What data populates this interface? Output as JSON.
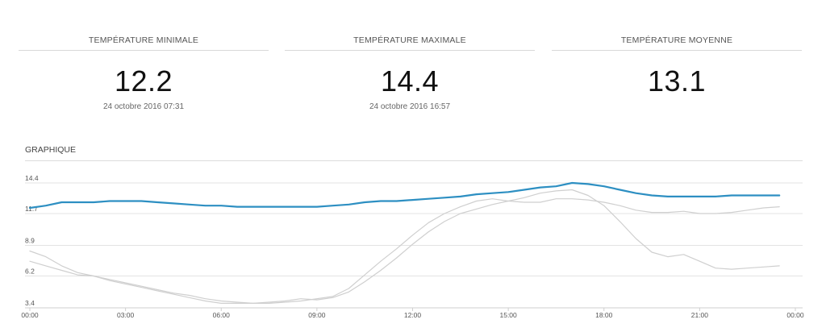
{
  "stats": [
    {
      "label": "TEMPÉRATURE MINIMALE",
      "value": "12.2",
      "date": "24 octobre 2016 07:31"
    },
    {
      "label": "TEMPÉRATURE MAXIMALE",
      "value": "14.4",
      "date": "24 octobre 2016 16:57"
    },
    {
      "label": "TEMPÉRATURE MOYENNE",
      "value": "13.1",
      "date": ""
    }
  ],
  "section": {
    "title": "GRAPHIQUE"
  },
  "colors": {
    "main": "#2d8fc2",
    "secondary": "#cfcfcf",
    "grid": "#e3e3e3"
  },
  "chart_data": {
    "type": "line",
    "ylim": [
      3.4,
      14.4
    ],
    "xlim": [
      0,
      24
    ],
    "yticks": [
      "14.4",
      "11.7",
      "8.9",
      "6.2",
      "3.4"
    ],
    "ytick_values": [
      14.4,
      11.7,
      8.9,
      6.2,
      3.4
    ],
    "xticks": [
      "00:00",
      "03:00",
      "06:00",
      "09:00",
      "12:00",
      "15:00",
      "18:00",
      "21:00",
      "00:00"
    ],
    "xtick_values": [
      0,
      3,
      6,
      9,
      12,
      15,
      18,
      21,
      24
    ],
    "grid": true,
    "series": [
      {
        "style": "main",
        "x": [
          0,
          0.5,
          1,
          1.5,
          2,
          2.5,
          3,
          3.5,
          4,
          4.5,
          5,
          5.5,
          6,
          6.5,
          7,
          7.5,
          8,
          8.5,
          9,
          9.5,
          10,
          10.5,
          11,
          11.5,
          12,
          12.5,
          13,
          13.5,
          14,
          14.5,
          15,
          15.5,
          16,
          16.5,
          17,
          17.5,
          18,
          18.5,
          19,
          19.5,
          20,
          20.5,
          21,
          21.5,
          22,
          22.5,
          23,
          23.5
        ],
        "y": [
          12.2,
          12.4,
          12.7,
          12.7,
          12.7,
          12.8,
          12.8,
          12.8,
          12.7,
          12.6,
          12.5,
          12.4,
          12.4,
          12.3,
          12.3,
          12.3,
          12.3,
          12.3,
          12.3,
          12.4,
          12.5,
          12.7,
          12.8,
          12.8,
          12.9,
          13.0,
          13.1,
          13.2,
          13.4,
          13.5,
          13.6,
          13.8,
          14.0,
          14.1,
          14.4,
          14.3,
          14.1,
          13.8,
          13.5,
          13.3,
          13.2,
          13.2,
          13.2,
          13.2,
          13.3,
          13.3,
          13.3,
          13.3
        ]
      },
      {
        "style": "secondary",
        "x": [
          0,
          0.5,
          1,
          1.5,
          2,
          2.5,
          3,
          3.5,
          4,
          4.5,
          5,
          5.5,
          6,
          6.5,
          7,
          7.5,
          8,
          8.5,
          9,
          9.5,
          10,
          10.5,
          11,
          11.5,
          12,
          12.5,
          13,
          13.5,
          14,
          14.5,
          15,
          15.5,
          16,
          16.5,
          17,
          17.5,
          18,
          18.5,
          19,
          19.5,
          20,
          20.5,
          21,
          21.5,
          22,
          22.5,
          23,
          23.5
        ],
        "y": [
          7.5,
          7.1,
          6.7,
          6.3,
          6.2,
          5.8,
          5.5,
          5.2,
          4.9,
          4.6,
          4.3,
          4.0,
          3.8,
          3.8,
          3.8,
          3.9,
          4.0,
          4.2,
          4.1,
          4.3,
          4.8,
          5.7,
          6.7,
          7.8,
          9.0,
          10.1,
          11.0,
          11.7,
          12.1,
          12.5,
          12.8,
          13.1,
          13.5,
          13.7,
          13.8,
          13.3,
          12.4,
          11.0,
          9.5,
          8.3,
          7.9,
          8.1,
          7.5,
          6.9,
          6.8,
          6.9,
          7.0,
          7.1
        ]
      },
      {
        "style": "secondary",
        "x": [
          0,
          0.5,
          1,
          1.5,
          2,
          2.5,
          3,
          3.5,
          4,
          4.5,
          5,
          5.5,
          6,
          6.5,
          7,
          7.5,
          8,
          8.5,
          9,
          9.5,
          10,
          10.5,
          11,
          11.5,
          12,
          12.5,
          13,
          13.5,
          14,
          14.5,
          15,
          15.5,
          16,
          16.5,
          17,
          17.5,
          18,
          18.5,
          19,
          19.5,
          20,
          20.5,
          21,
          21.5,
          22,
          22.5,
          23,
          23.5
        ],
        "y": [
          8.4,
          7.9,
          7.1,
          6.5,
          6.2,
          5.9,
          5.6,
          5.3,
          5.0,
          4.7,
          4.5,
          4.2,
          4.0,
          3.9,
          3.8,
          3.8,
          3.9,
          4.0,
          4.2,
          4.4,
          5.1,
          6.3,
          7.5,
          8.6,
          9.8,
          10.9,
          11.7,
          12.3,
          12.8,
          13.0,
          12.8,
          12.7,
          12.7,
          13.0,
          13.0,
          12.9,
          12.7,
          12.4,
          12.0,
          11.8,
          11.8,
          11.9,
          11.7,
          11.7,
          11.8,
          12.0,
          12.2,
          12.3
        ]
      }
    ]
  }
}
